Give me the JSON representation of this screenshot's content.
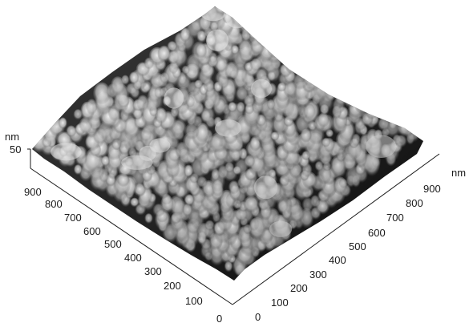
{
  "figure": {
    "z_axis": {
      "unit": "nm",
      "ticks": [
        "50"
      ]
    },
    "left_axis": {
      "ticks": [
        "0",
        "100",
        "200",
        "300",
        "400",
        "500",
        "600",
        "700",
        "800",
        "900"
      ]
    },
    "right_axis": {
      "unit": "nm",
      "ticks": [
        "0",
        "100",
        "200",
        "300",
        "400",
        "500",
        "600",
        "700",
        "800",
        "900"
      ]
    },
    "surface": {
      "low_color": "#0b0b0b",
      "high_color": "#f2f2f2"
    }
  }
}
